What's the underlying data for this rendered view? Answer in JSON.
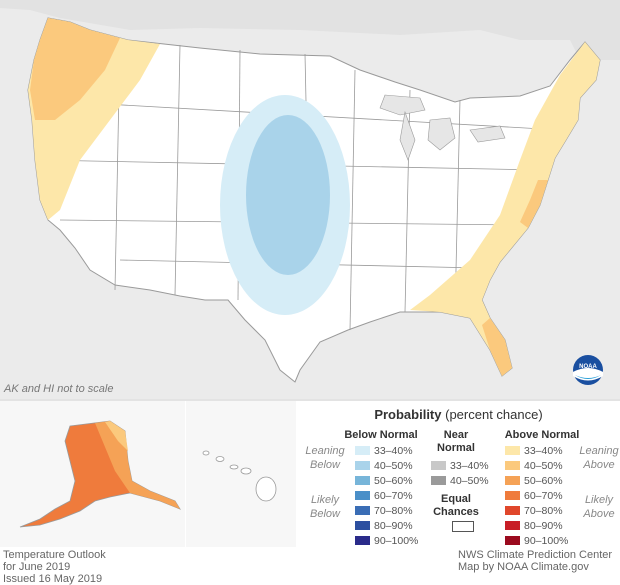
{
  "scale_note": "AK and HI not to scale",
  "logo": {
    "icon": "noaa-logo",
    "text": "NOAA"
  },
  "colors": {
    "land": "#ffffff",
    "background": "#ebebeb",
    "state_border": "#9a9a9a",
    "above_leaning": "#fde7a9",
    "above_40_50": "#fbc97d",
    "above_50_60": "#f5a256",
    "above_60_70": "#ef7b3c",
    "below_leaning": "#d6edf7",
    "below_40_50": "#a9d3ea"
  },
  "legend": {
    "title": "Probability",
    "subtitle": "(percent chance)",
    "below_header": "Below Normal",
    "near_header": "Near Normal",
    "above_header": "Above Normal",
    "leaning_below": "Leaning Below",
    "likely_below": "Likely Below",
    "leaning_above": "Leaning Above",
    "likely_above": "Likely Above",
    "equal_chances": "Equal Chances",
    "below": [
      {
        "label": "33–40%",
        "color": "#d6edf7"
      },
      {
        "label": "40–50%",
        "color": "#a9d3ea"
      },
      {
        "label": "50–60%",
        "color": "#77b5d9"
      },
      {
        "label": "60–70%",
        "color": "#4a8fc8"
      },
      {
        "label": "70–80%",
        "color": "#3a6db5"
      },
      {
        "label": "80–90%",
        "color": "#2c4fa0"
      },
      {
        "label": "90–100%",
        "color": "#2a2b8a"
      }
    ],
    "near": [
      {
        "label": "33–40%",
        "color": "#c8c8c8"
      },
      {
        "label": "40–50%",
        "color": "#9a9a9a"
      }
    ],
    "above": [
      {
        "label": "33–40%",
        "color": "#fde7a9"
      },
      {
        "label": "40–50%",
        "color": "#fbc97d"
      },
      {
        "label": "50–60%",
        "color": "#f5a256"
      },
      {
        "label": "60–70%",
        "color": "#ef7b3c"
      },
      {
        "label": "70–80%",
        "color": "#e0472b"
      },
      {
        "label": "80–90%",
        "color": "#c81e26"
      },
      {
        "label": "90–100%",
        "color": "#9b0a1e"
      }
    ]
  },
  "footer": {
    "line1": "Temperature Outlook",
    "line2": "for June 2019",
    "line3": "Issued 16 May 2019",
    "credit1": "NWS Climate Prediction Center",
    "credit2": "Map by NOAA Climate.gov"
  }
}
